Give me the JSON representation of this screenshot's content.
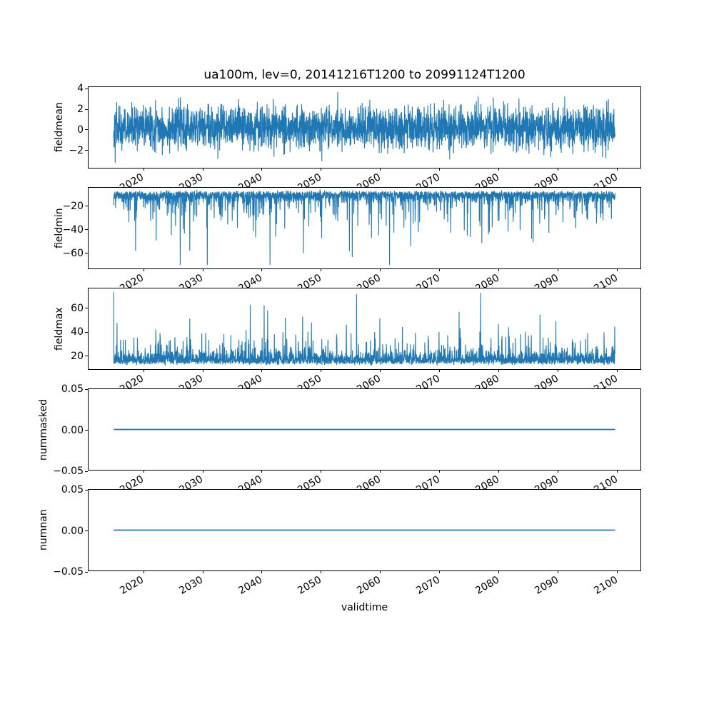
{
  "chart_data": {
    "type": "line",
    "title": "ua100m, lev=0, 20141216T1200 to 20991124T1200",
    "xlabel": "validtime",
    "line_color": "#1f77b4",
    "frame_color": "#000000",
    "grid": "off",
    "legend": "none",
    "x_axis": {
      "lim": [
        2010.7,
        2104.2
      ],
      "tick_values": [
        2020,
        2030,
        2040,
        2050,
        2060,
        2070,
        2080,
        2090,
        2100
      ],
      "tick_labels": [
        "2020",
        "2030",
        "2040",
        "2050",
        "2060",
        "2070",
        "2080",
        "2090",
        "2100"
      ],
      "tick_rotation_deg": 30,
      "data_start": 2014.96,
      "data_end": 2099.9
    },
    "charts": [
      {
        "ylabel": "fieldmean",
        "ylim": [
          -3.83,
          4.15
        ],
        "ytick_values": [
          4,
          2,
          0,
          -2
        ],
        "ytick_labels": [
          "4",
          "2",
          "0",
          "−2"
        ],
        "description": "dense noisy band around 0, core ±1.3, frequent excursions to ±2.5, extremes −3.4 to +3.9",
        "gen": {
          "kind": "noise",
          "n": 3000,
          "seed": 42,
          "base": 0.12,
          "sigma": 1.05,
          "half": false,
          "dir": 1,
          "jitter": 0,
          "spike_prob": 0,
          "spike_base": 0,
          "spike_scale": 0,
          "clip": [
            -3.45,
            3.92
          ]
        }
      },
      {
        "ylabel": "fieldmin",
        "ylim": [
          -74,
          -4.6
        ],
        "ytick_values": [
          -20,
          -40,
          -60
        ],
        "ytick_labels": [
          "−20",
          "−40",
          "−60"
        ],
        "description": "dense band −8 to −20 with many downward spikes to −30…−55, rare spikes near −70",
        "gen": {
          "kind": "noise",
          "n": 3000,
          "seed": 7,
          "base": -8,
          "sigma": 4.2,
          "half": true,
          "dir": -1,
          "jitter": 0.7,
          "spike_prob": 0.08,
          "spike_base": 7,
          "spike_scale": 11,
          "clip": [
            -71,
            -5.5
          ]
        }
      },
      {
        "ylabel": "fieldmax",
        "ylim": [
          8,
          76.4
        ],
        "ytick_values": [
          60,
          40,
          20
        ],
        "ytick_labels": [
          "60",
          "40",
          "20"
        ],
        "description": "dense band 12 to 28 with many upward spikes to 35…65, tallest near 73",
        "gen": {
          "kind": "noise",
          "n": 3000,
          "seed": 13,
          "base": 12.5,
          "sigma": 5,
          "half": true,
          "dir": 1,
          "jitter": 0.7,
          "spike_prob": 0.075,
          "spike_base": 7,
          "spike_scale": 10,
          "clip": [
            11,
            73.5
          ]
        }
      },
      {
        "ylabel": "nummasked",
        "ylim": [
          -0.05,
          0.05
        ],
        "ytick_values": [
          0.05,
          0,
          -0.05
        ],
        "ytick_labels": [
          "0.05",
          "0.00",
          "−0.05"
        ],
        "description": "constant 0 over the full time range",
        "gen": {
          "kind": "constant",
          "value": 0
        }
      },
      {
        "ylabel": "numnan",
        "ylim": [
          -0.05,
          0.05
        ],
        "ytick_values": [
          0.05,
          0,
          -0.05
        ],
        "ytick_labels": [
          "0.05",
          "0.00",
          "−0.05"
        ],
        "description": "constant 0 over the full time range",
        "gen": {
          "kind": "constant",
          "value": 0
        }
      }
    ]
  }
}
